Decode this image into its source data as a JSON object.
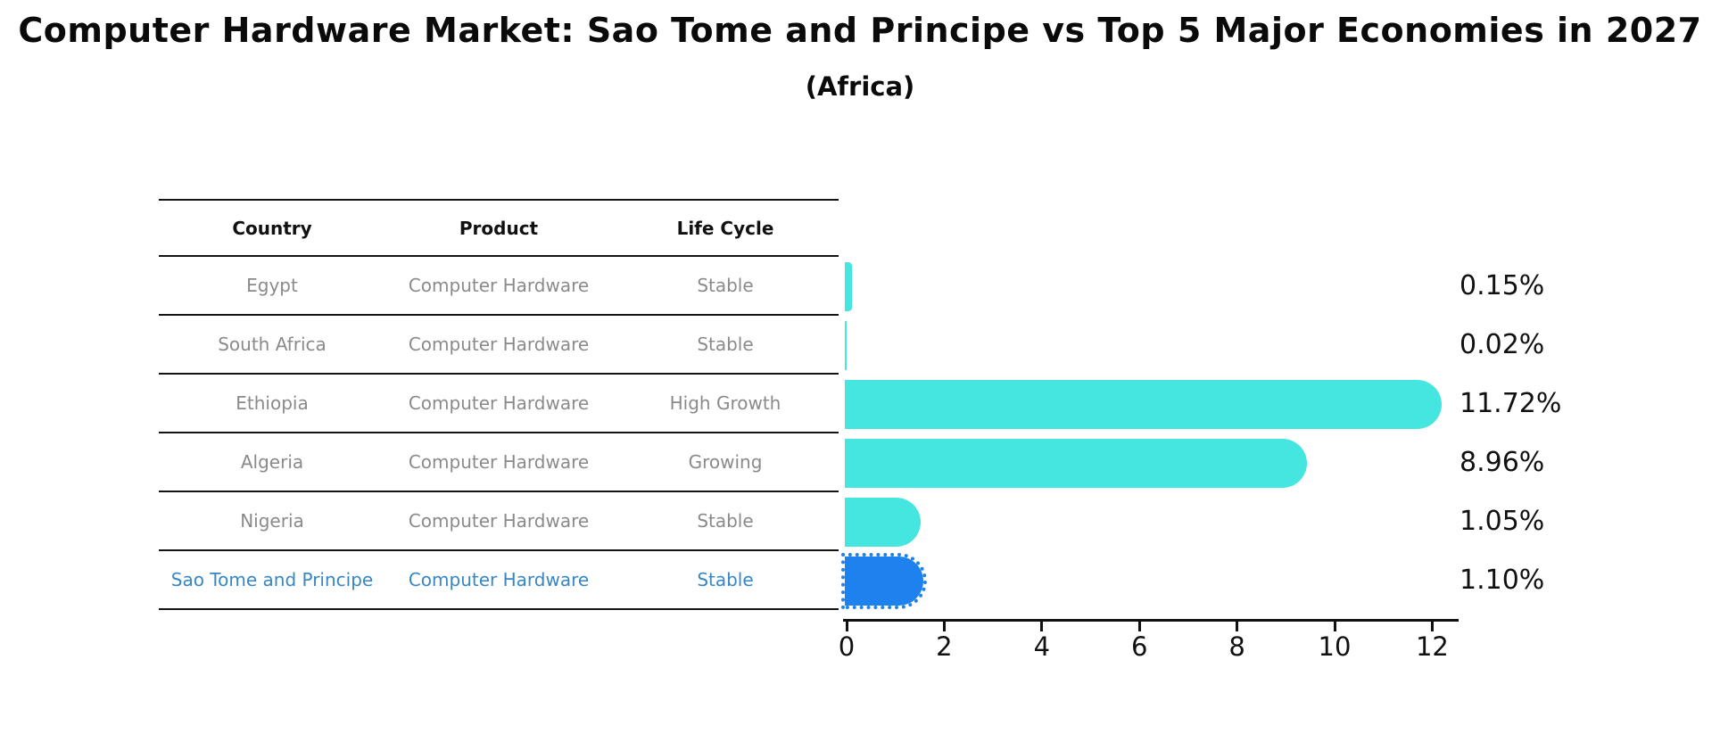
{
  "title": "Computer Hardware Market: Sao Tome and Principe vs Top 5 Major Economies in 2027",
  "subtitle": "(Africa)",
  "table": {
    "headers": [
      "Country",
      "Product",
      "Life Cycle"
    ],
    "rows": [
      {
        "country": "Egypt",
        "product": "Computer Hardware",
        "life_cycle": "Stable",
        "highlight": false
      },
      {
        "country": "South Africa",
        "product": "Computer Hardware",
        "life_cycle": "Stable",
        "highlight": false
      },
      {
        "country": "Ethiopia",
        "product": "Computer Hardware",
        "life_cycle": "High Growth",
        "highlight": false
      },
      {
        "country": "Algeria",
        "product": "Computer Hardware",
        "life_cycle": "Growing",
        "highlight": false
      },
      {
        "country": "Nigeria",
        "product": "Computer Hardware",
        "life_cycle": "Stable",
        "highlight": false
      },
      {
        "country": "Sao Tome and Principe",
        "product": "Computer Hardware",
        "life_cycle": "Stable",
        "highlight": true
      }
    ]
  },
  "chart_data": {
    "type": "bar",
    "orientation": "horizontal",
    "categories": [
      "Egypt",
      "South Africa",
      "Ethiopia",
      "Algeria",
      "Nigeria",
      "Sao Tome and Principe"
    ],
    "values": [
      0.15,
      0.02,
      11.72,
      8.96,
      1.05,
      1.1
    ],
    "value_labels": [
      "0.15%",
      "0.02%",
      "11.72%",
      "8.96%",
      "1.05%",
      "1.10%"
    ],
    "x_ticks": [
      0,
      2,
      4,
      6,
      8,
      10,
      12
    ],
    "xlim": [
      0,
      12.5
    ],
    "title": "Computer Hardware Market: Sao Tome and Principe vs Top 5 Major Economies in 2027 (Africa)",
    "xlabel": "",
    "ylabel": "",
    "grid": false,
    "legend": false,
    "bar_color": "#45e6df",
    "highlight_bar_color": "#1e82ee",
    "highlight_index": 5,
    "highlight_edge_style": "dotted",
    "highlight_text_color": "#3786c5",
    "axis_color": "#111111",
    "row_text_color": "#8a8a8a"
  }
}
